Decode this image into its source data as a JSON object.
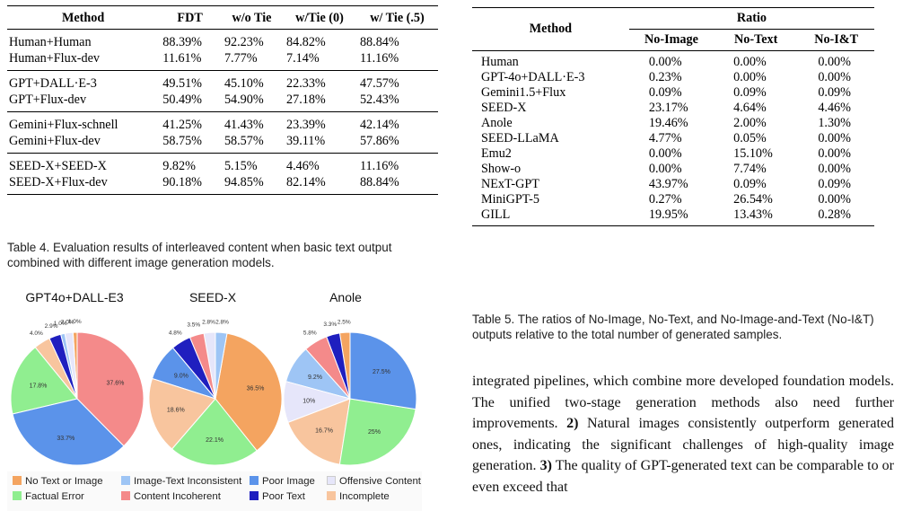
{
  "table4": {
    "headers": [
      "Method",
      "FDT",
      "w/o Tie",
      "w/Tie (0)",
      "w/ Tie (.5)"
    ],
    "groups": [
      [
        [
          "Human+Human",
          "88.39%",
          "92.23%",
          "84.82%",
          "88.84%"
        ],
        [
          "Human+Flux-dev",
          "11.61%",
          "7.77%",
          "7.14%",
          "11.16%"
        ]
      ],
      [
        [
          "GPT+DALL·E-3",
          "49.51%",
          "45.10%",
          "22.33%",
          "47.57%"
        ],
        [
          "GPT+Flux-dev",
          "50.49%",
          "54.90%",
          "27.18%",
          "52.43%"
        ]
      ],
      [
        [
          "Gemini+Flux-schnell",
          "41.25%",
          "41.43%",
          "23.39%",
          "42.14%"
        ],
        [
          "Gemini+Flux-dev",
          "58.75%",
          "58.57%",
          "39.11%",
          "57.86%"
        ]
      ],
      [
        [
          "SEED-X+SEED-X",
          "9.82%",
          "5.15%",
          "4.46%",
          "11.16%"
        ],
        [
          "SEED-X+Flux-dev",
          "90.18%",
          "94.85%",
          "82.14%",
          "88.84%"
        ]
      ]
    ],
    "caption": "Table 4. Evaluation results of interleaved content when basic text output combined with different image generation models."
  },
  "table5": {
    "method_header": "Method",
    "group_header": "Ratio",
    "sub_headers": [
      "No-Image",
      "No-Text",
      "No-I&T"
    ],
    "rows": [
      [
        "Human",
        "0.00%",
        "0.00%",
        "0.00%"
      ],
      [
        "GPT-4o+DALL·E-3",
        "0.23%",
        "0.00%",
        "0.00%"
      ],
      [
        "Gemini1.5+Flux",
        "0.09%",
        "0.09%",
        "0.09%"
      ],
      [
        "SEED-X",
        "23.17%",
        "4.64%",
        "4.46%"
      ],
      [
        "Anole",
        "19.46%",
        "2.00%",
        "1.30%"
      ],
      [
        "SEED-LLaMA",
        "4.77%",
        "0.05%",
        "0.00%"
      ],
      [
        "Emu2",
        "0.00%",
        "15.10%",
        "0.00%"
      ],
      [
        "Show-o",
        "0.00%",
        "7.74%",
        "0.00%"
      ],
      [
        "NExT-GPT",
        "43.97%",
        "0.09%",
        "0.09%"
      ],
      [
        "MiniGPT-5",
        "0.27%",
        "26.54%",
        "0.00%"
      ],
      [
        "GILL",
        "19.95%",
        "13.43%",
        "0.28%"
      ]
    ],
    "caption": "Table 5. The ratios of No-Image, No-Text, and No-Image-and-Text (No-I&T) outputs relative to the total number of generated samples."
  },
  "body_text": {
    "p1": "integrated pipelines, which combine more developed foundation models. The unified two-stage generation methods also need further improvements. ",
    "n2": "2)",
    "p2": " Natural images consistently outperform generated ones, indicating the significant challenges of high-quality image generation. ",
    "n3": "3)",
    "p3": " The quality of GPT-generated text can be comparable to or even exceed that"
  },
  "legend": [
    {
      "label": "No Text or Image",
      "color": "#f4a460"
    },
    {
      "label": "Image-Text Inconsistent",
      "color": "#9ec5f5"
    },
    {
      "label": "Poor Image",
      "color": "#5b93ea"
    },
    {
      "label": "Offensive Content",
      "color": "#e6e6fa"
    },
    {
      "label": "Factual Error",
      "color": "#90ee90"
    },
    {
      "label": "Content Incoherent",
      "color": "#f48a8a"
    },
    {
      "label": "Poor Text",
      "color": "#1f1fbf"
    },
    {
      "label": "Incomplete",
      "color": "#f8c59e"
    }
  ],
  "chart_data": [
    {
      "type": "pie",
      "title": "GPT4o+DALL-E3",
      "labels": [
        "No Text or Image",
        "Image-Text Inconsistent",
        "Poor Image",
        "Offensive Content",
        "Factual Error",
        "Content Incoherent",
        "Poor Text",
        "Incomplete"
      ],
      "values": [
        1.0,
        1.0,
        33.7,
        2.0,
        17.8,
        37.6,
        2.9,
        4.0
      ],
      "label_texts": [
        "1.0%",
        "1.0%",
        "33.7%",
        "2.0%",
        "17.8%",
        "37.6%",
        "2.9%",
        "4.0%"
      ],
      "order": [
        0,
        3,
        1,
        6,
        7,
        4,
        2,
        5
      ]
    },
    {
      "type": "pie",
      "title": "SEED-X",
      "labels": [
        "No Text or Image",
        "Image-Text Inconsistent",
        "Poor Image",
        "Offensive Content",
        "Factual Error",
        "Content Incoherent",
        "Poor Text",
        "Incomplete"
      ],
      "values": [
        36.5,
        2.8,
        9.0,
        2.8,
        22.1,
        3.5,
        4.8,
        18.6
      ],
      "label_texts": [
        "36.5%",
        "2.8%",
        "9.0%",
        "2.8%",
        "22.1%",
        "3.5%",
        "4.8%",
        "18.6%"
      ],
      "order": [
        3,
        5,
        6,
        2,
        7,
        4,
        0,
        1
      ]
    },
    {
      "type": "pie",
      "title": "Anole",
      "labels": [
        "No Text or Image",
        "Image-Text Inconsistent",
        "Poor Image",
        "Offensive Content",
        "Factual Error",
        "Content Incoherent",
        "Poor Text",
        "Incomplete"
      ],
      "values": [
        2.5,
        9.2,
        27.5,
        10,
        25,
        5.8,
        3.3,
        16.7
      ],
      "label_texts": [
        "2.5%",
        "9.2%",
        "27.5%",
        "10%",
        "25%",
        "5.8%",
        "3.3%",
        "16.7%"
      ],
      "order": [
        0,
        6,
        5,
        1,
        3,
        7,
        4,
        2
      ]
    }
  ]
}
